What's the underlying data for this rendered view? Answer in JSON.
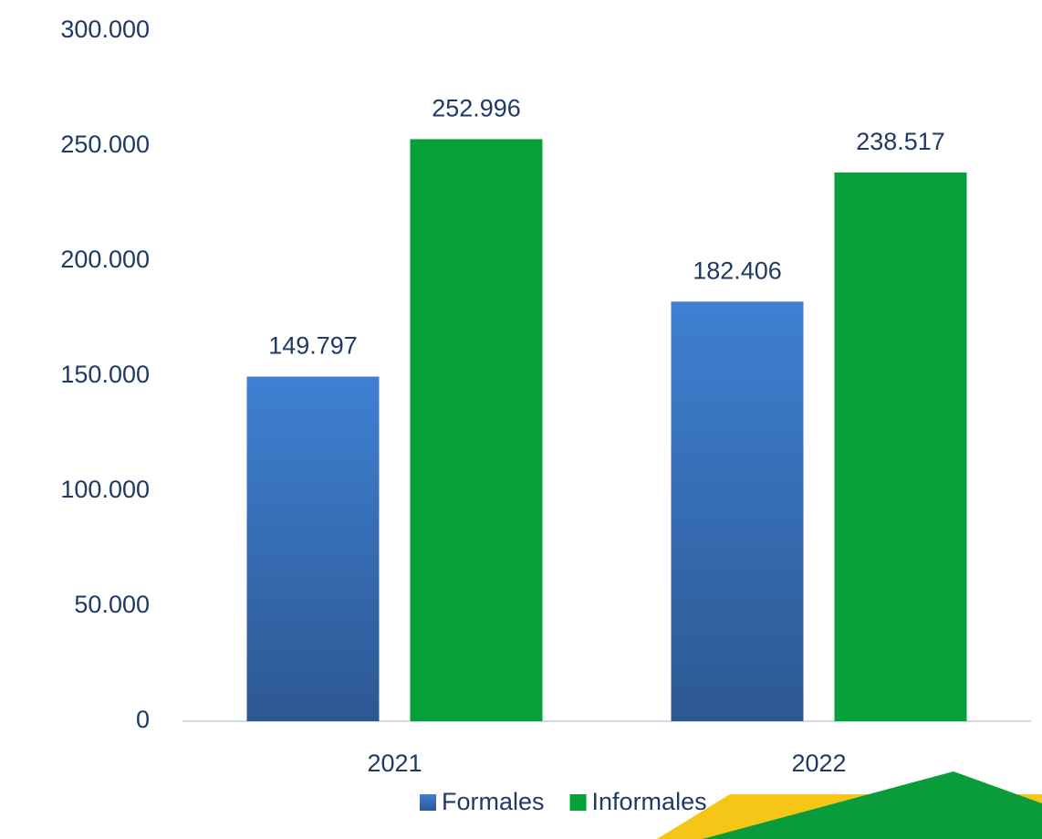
{
  "chart_data": {
    "type": "bar",
    "categories": [
      "2021",
      "2022"
    ],
    "series": [
      {
        "name": "Formales",
        "color": "#3a76c4",
        "values": [
          149797,
          182406
        ],
        "value_labels": [
          "149.797",
          "182.406"
        ]
      },
      {
        "name": "Informales",
        "color": "#06a03a",
        "values": [
          252996,
          238517
        ],
        "value_labels": [
          "252.996",
          "238.517"
        ]
      }
    ],
    "ylim": [
      0,
      300000
    ],
    "yticks": [
      0,
      {
        "value": 50000,
        "label": "50.000"
      },
      {
        "value": 100000,
        "label": "100.000"
      },
      {
        "value": 150000,
        "label": "150.000"
      },
      {
        "value": 200000,
        "label": "200.000"
      },
      {
        "value": 250000,
        "label": "250.000"
      },
      {
        "value": 300000,
        "label": "300.000"
      }
    ],
    "grid": false,
    "legend": "bottom"
  }
}
